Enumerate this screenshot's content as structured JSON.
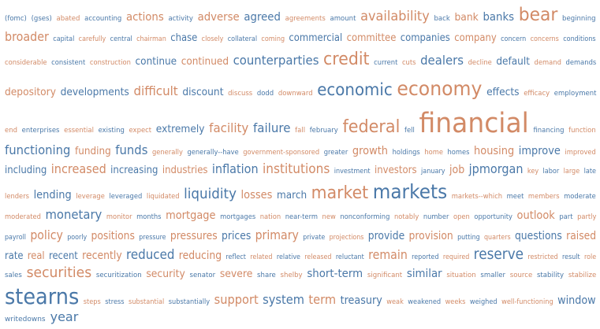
{
  "colors": {
    "blue": "#4a78a8",
    "orange": "#d28a66"
  },
  "rows": [
    [
      [
        "(fomc)",
        "b",
        9
      ],
      [
        "(gses)",
        "b",
        9
      ],
      [
        "abated",
        "o",
        9
      ],
      [
        "accounting",
        "b",
        9
      ],
      [
        "actions",
        "o",
        14
      ],
      [
        "activity",
        "b",
        9
      ],
      [
        "adverse",
        "o",
        14
      ],
      [
        "agreed",
        "b",
        14
      ],
      [
        "agreements",
        "o",
        9
      ],
      [
        "amount",
        "b",
        9
      ],
      [
        "availability",
        "o",
        17
      ],
      [
        "back",
        "b",
        9
      ],
      [
        "bank",
        "o",
        13
      ],
      [
        "banks",
        "b",
        14
      ],
      [
        "bear",
        "o",
        23
      ],
      [
        "beginning",
        "b",
        9
      ]
    ],
    [
      [
        "broader",
        "o",
        16
      ],
      [
        "capital",
        "b",
        9
      ],
      [
        "carefully",
        "o",
        9
      ],
      [
        "central",
        "b",
        9
      ],
      [
        "chairman",
        "o",
        9
      ],
      [
        "chase",
        "b",
        13
      ],
      [
        "closely",
        "o",
        9
      ],
      [
        "collateral",
        "b",
        9
      ],
      [
        "coming",
        "o",
        9
      ],
      [
        "commercial",
        "b",
        13
      ],
      [
        "committee",
        "o",
        13
      ],
      [
        "companies",
        "b",
        13
      ],
      [
        "company",
        "o",
        13
      ],
      [
        "concern",
        "b",
        9
      ],
      [
        "concerns",
        "o",
        9
      ],
      [
        "conditions",
        "b",
        9
      ]
    ],
    [
      [
        "considerable",
        "o",
        9
      ],
      [
        "consistent",
        "b",
        9
      ],
      [
        "construction",
        "o",
        9
      ],
      [
        "continue",
        "b",
        13
      ],
      [
        "continued",
        "o",
        13
      ],
      [
        "counterparties",
        "b",
        16
      ],
      [
        "credit",
        "o",
        22
      ],
      [
        "current",
        "b",
        9
      ],
      [
        "cuts",
        "o",
        9
      ],
      [
        "dealers",
        "b",
        16
      ],
      [
        "decline",
        "o",
        9
      ],
      [
        "default",
        "b",
        13
      ],
      [
        "demand",
        "o",
        9
      ],
      [
        "demands",
        "b",
        9
      ]
    ],
    [
      [
        "depository",
        "o",
        13
      ],
      [
        "developments",
        "b",
        13
      ],
      [
        "difficult",
        "o",
        16
      ],
      [
        "discount",
        "b",
        13
      ],
      [
        "discuss",
        "o",
        9
      ],
      [
        "dodd",
        "b",
        9
      ],
      [
        "downward",
        "o",
        9
      ],
      [
        "economic",
        "b",
        21
      ],
      [
        "economy",
        "o",
        25
      ],
      [
        "effects",
        "b",
        13
      ],
      [
        "efficacy",
        "o",
        9
      ],
      [
        "employment",
        "b",
        9
      ]
    ],
    [
      [
        "end",
        "o",
        9
      ],
      [
        "enterprises",
        "b",
        9
      ],
      [
        "essential",
        "o",
        9
      ],
      [
        "existing",
        "b",
        9
      ],
      [
        "expect",
        "o",
        9
      ],
      [
        "extremely",
        "b",
        13
      ],
      [
        "facility",
        "o",
        16
      ],
      [
        "failure",
        "b",
        16
      ],
      [
        "fall",
        "o",
        9
      ],
      [
        "february",
        "b",
        9
      ],
      [
        "federal",
        "o",
        22
      ],
      [
        "fell",
        "b",
        9
      ],
      [
        "financial",
        "o",
        35
      ],
      [
        "financing",
        "b",
        9
      ],
      [
        "function",
        "o",
        9
      ]
    ],
    [
      [
        "functioning",
        "b",
        16
      ],
      [
        "funding",
        "o",
        13
      ],
      [
        "funds",
        "b",
        16
      ],
      [
        "generally",
        "o",
        9
      ],
      [
        "generally--have",
        "b",
        9
      ],
      [
        "government-sponsored",
        "o",
        9
      ],
      [
        "greater",
        "b",
        9
      ],
      [
        "growth",
        "o",
        14
      ],
      [
        "holdings",
        "b",
        9
      ],
      [
        "home",
        "o",
        9
      ],
      [
        "homes",
        "b",
        9
      ],
      [
        "housing",
        "o",
        14
      ],
      [
        "improve",
        "b",
        14
      ],
      [
        "improved",
        "o",
        9
      ]
    ],
    [
      [
        "including",
        "b",
        13
      ],
      [
        "increased",
        "o",
        16
      ],
      [
        "increasing",
        "b",
        13
      ],
      [
        "industries",
        "o",
        13
      ],
      [
        "inflation",
        "b",
        16
      ],
      [
        "institutions",
        "o",
        17
      ],
      [
        "investment",
        "b",
        9
      ],
      [
        "investors",
        "o",
        13
      ],
      [
        "january",
        "b",
        9
      ],
      [
        "job",
        "o",
        14
      ],
      [
        "jpmorgan",
        "b",
        16
      ],
      [
        "key",
        "o",
        9
      ],
      [
        "labor",
        "b",
        9
      ],
      [
        "large",
        "o",
        9
      ],
      [
        "late",
        "b",
        9
      ]
    ],
    [
      [
        "lenders",
        "o",
        9
      ],
      [
        "lending",
        "b",
        14
      ],
      [
        "leverage",
        "o",
        9
      ],
      [
        "leveraged",
        "b",
        9
      ],
      [
        "liquidated",
        "o",
        9
      ],
      [
        "liquidity",
        "b",
        18
      ],
      [
        "losses",
        "o",
        14
      ],
      [
        "march",
        "b",
        13
      ],
      [
        "market",
        "o",
        22
      ],
      [
        "markets",
        "b",
        25
      ],
      [
        "markets--which",
        "o",
        9
      ],
      [
        "meet",
        "b",
        9
      ],
      [
        "members",
        "o",
        9
      ],
      [
        "moderate",
        "b",
        9
      ]
    ],
    [
      [
        "moderated",
        "o",
        9
      ],
      [
        "monetary",
        "b",
        16
      ],
      [
        "monitor",
        "o",
        9
      ],
      [
        "months",
        "b",
        9
      ],
      [
        "mortgage",
        "o",
        14
      ],
      [
        "mortgages",
        "b",
        9
      ],
      [
        "nation",
        "o",
        9
      ],
      [
        "near-term",
        "b",
        9
      ],
      [
        "new",
        "o",
        9
      ],
      [
        "nonconforming",
        "b",
        9
      ],
      [
        "notably",
        "o",
        9
      ],
      [
        "number",
        "b",
        9
      ],
      [
        "open",
        "o",
        9
      ],
      [
        "opportunity",
        "b",
        9
      ],
      [
        "outlook",
        "o",
        14
      ],
      [
        "part",
        "b",
        9
      ],
      [
        "partly",
        "o",
        9
      ]
    ],
    [
      [
        "payroll",
        "b",
        9
      ],
      [
        "policy",
        "o",
        16
      ],
      [
        "poorly",
        "b",
        9
      ],
      [
        "positions",
        "o",
        14
      ],
      [
        "pressure",
        "b",
        9
      ],
      [
        "pressures",
        "o",
        14
      ],
      [
        "prices",
        "b",
        14
      ],
      [
        "primary",
        "o",
        16
      ],
      [
        "private",
        "b",
        9
      ],
      [
        "projections",
        "o",
        9
      ],
      [
        "provide",
        "b",
        14
      ],
      [
        "provision",
        "o",
        14
      ],
      [
        "putting",
        "b",
        9
      ],
      [
        "quarters",
        "o",
        9
      ],
      [
        "questions",
        "b",
        14
      ],
      [
        "raised",
        "o",
        14
      ]
    ],
    [
      [
        "rate",
        "b",
        13
      ],
      [
        "real",
        "o",
        13
      ],
      [
        "recent",
        "b",
        13
      ],
      [
        "recently",
        "o",
        14
      ],
      [
        "reduced",
        "b",
        17
      ],
      [
        "reducing",
        "o",
        14
      ],
      [
        "reflect",
        "b",
        9
      ],
      [
        "related",
        "o",
        9
      ],
      [
        "relative",
        "b",
        9
      ],
      [
        "released",
        "o",
        9
      ],
      [
        "reluctant",
        "b",
        9
      ],
      [
        "remain",
        "o",
        16
      ],
      [
        "reported",
        "b",
        9
      ],
      [
        "required",
        "o",
        9
      ],
      [
        "reserve",
        "b",
        19
      ],
      [
        "restricted",
        "o",
        9
      ],
      [
        "result",
        "b",
        9
      ],
      [
        "role",
        "o",
        9
      ]
    ],
    [
      [
        "sales",
        "b",
        9
      ],
      [
        "securities",
        "o",
        18
      ],
      [
        "securitization",
        "b",
        9
      ],
      [
        "security",
        "o",
        13
      ],
      [
        "senator",
        "b",
        9
      ],
      [
        "severe",
        "o",
        13
      ],
      [
        "share",
        "b",
        9
      ],
      [
        "shelby",
        "o",
        9
      ],
      [
        "short-term",
        "b",
        14
      ],
      [
        "significant",
        "o",
        9
      ],
      [
        "similar",
        "b",
        14
      ],
      [
        "situation",
        "o",
        9
      ],
      [
        "smaller",
        "b",
        9
      ],
      [
        "source",
        "o",
        9
      ],
      [
        "stability",
        "b",
        9
      ],
      [
        "stabilize",
        "o",
        9
      ]
    ],
    [
      [
        "stearns",
        "b",
        28
      ],
      [
        "steps",
        "o",
        9
      ],
      [
        "stress",
        "b",
        9
      ],
      [
        "substantial",
        "o",
        9
      ],
      [
        "substantially",
        "b",
        9
      ],
      [
        "support",
        "o",
        16
      ],
      [
        "system",
        "b",
        16
      ],
      [
        "term",
        "o",
        16
      ],
      [
        "treasury",
        "b",
        14
      ],
      [
        "weak",
        "o",
        9
      ],
      [
        "weakened",
        "b",
        9
      ],
      [
        "weeks",
        "o",
        9
      ],
      [
        "weighed",
        "b",
        9
      ],
      [
        "well-functioning",
        "o",
        9
      ],
      [
        "window",
        "b",
        14
      ]
    ],
    [
      [
        "writedowns",
        "b",
        9
      ],
      [
        "year",
        "b",
        16
      ]
    ]
  ]
}
